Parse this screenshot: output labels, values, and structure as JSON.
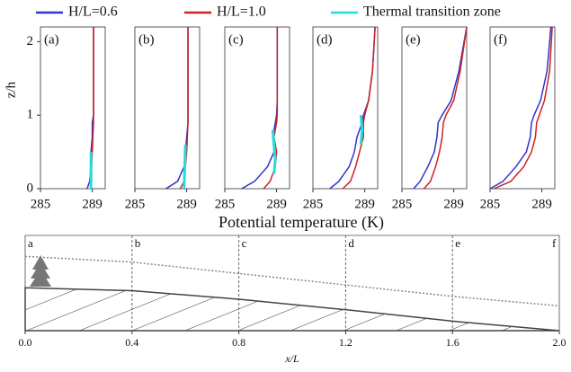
{
  "chart_data": [
    {
      "type": "line",
      "panel_label": "(a)",
      "xlabel": "Potential temperature (K)",
      "ylabel": "z/h",
      "xlim": [
        285,
        290
      ],
      "xticks": [
        285,
        289
      ],
      "ylim": [
        0,
        2.2
      ],
      "yticks": [
        0,
        1,
        2
      ],
      "series": [
        {
          "name": "H/L=0.6",
          "color": "#3333cc",
          "x": [
            288.6,
            288.8,
            288.9,
            288.9,
            289.0,
            289.0,
            289.1,
            289.1,
            289.1,
            289.1
          ],
          "values": [
            0,
            0.1,
            0.3,
            0.5,
            0.7,
            0.9,
            1.0,
            1.2,
            1.6,
            2.2
          ]
        },
        {
          "name": "H/L=1.0",
          "color": "#cc2222",
          "x": [
            288.9,
            288.95,
            288.95,
            289.0,
            289.05,
            289.1,
            289.1,
            289.1,
            289.1,
            289.1
          ],
          "values": [
            0,
            0.1,
            0.3,
            0.5,
            0.7,
            0.9,
            1.0,
            1.2,
            1.6,
            2.2
          ]
        },
        {
          "name": "Thermal transition zone",
          "color": "#22dddd",
          "x": [
            288.9,
            288.9
          ],
          "values": [
            0,
            0.5
          ]
        }
      ]
    },
    {
      "type": "line",
      "panel_label": "(b)",
      "xlim": [
        285,
        290
      ],
      "xticks": [
        285,
        289
      ],
      "ylim": [
        0,
        2.2
      ],
      "series": [
        {
          "color": "#3333cc",
          "x": [
            287.4,
            288.3,
            288.8,
            288.9,
            289.0,
            289.1,
            289.1,
            289.1,
            289.1,
            289.1
          ],
          "values": [
            0,
            0.1,
            0.3,
            0.5,
            0.7,
            0.9,
            1.0,
            1.2,
            1.6,
            2.2
          ]
        },
        {
          "color": "#cc2222",
          "x": [
            288.5,
            288.8,
            288.9,
            289.0,
            289.05,
            289.1,
            289.1,
            289.1,
            289.1,
            289.1
          ],
          "values": [
            0,
            0.1,
            0.3,
            0.5,
            0.7,
            0.9,
            1.0,
            1.2,
            1.6,
            2.2
          ]
        },
        {
          "color": "#22dddd",
          "x": [
            288.8,
            288.9
          ],
          "values": [
            0,
            0.6
          ]
        }
      ]
    },
    {
      "type": "line",
      "panel_label": "(c)",
      "xlim": [
        285,
        290
      ],
      "xticks": [
        285,
        289
      ],
      "ylim": [
        0,
        2.2
      ],
      "series": [
        {
          "color": "#3333cc",
          "x": [
            286.3,
            287.3,
            288.3,
            288.8,
            288.7,
            288.9,
            289.0,
            289.05,
            289.05,
            289.05
          ],
          "values": [
            0,
            0.1,
            0.3,
            0.5,
            0.7,
            0.9,
            1.0,
            1.2,
            1.6,
            2.2
          ]
        },
        {
          "color": "#cc2222",
          "x": [
            288.0,
            288.5,
            288.9,
            289.0,
            288.8,
            289.0,
            289.05,
            289.05,
            289.05,
            289.05
          ],
          "values": [
            0,
            0.1,
            0.3,
            0.5,
            0.7,
            0.9,
            1.0,
            1.2,
            1.6,
            2.2
          ]
        },
        {
          "color": "#22dddd",
          "x": [
            288.8,
            288.9,
            288.8,
            288.7
          ],
          "values": [
            0.2,
            0.4,
            0.6,
            0.8
          ]
        }
      ]
    },
    {
      "type": "line",
      "panel_label": "(d)",
      "xlim": [
        285,
        290
      ],
      "xticks": [
        285,
        289
      ],
      "ylim": [
        0,
        2.2
      ],
      "series": [
        {
          "color": "#3333cc",
          "x": [
            286.3,
            287.0,
            287.8,
            288.2,
            288.4,
            288.8,
            288.9,
            289.3,
            289.6,
            289.8
          ],
          "values": [
            0,
            0.1,
            0.3,
            0.5,
            0.7,
            0.9,
            1.0,
            1.2,
            1.6,
            2.2
          ]
        },
        {
          "color": "#cc2222",
          "x": [
            287.3,
            287.9,
            288.3,
            288.6,
            288.9,
            288.9,
            289.0,
            289.3,
            289.6,
            289.8
          ],
          "values": [
            0,
            0.1,
            0.3,
            0.5,
            0.7,
            0.9,
            1.0,
            1.2,
            1.6,
            2.2
          ]
        },
        {
          "color": "#22dddd",
          "x": [
            288.7,
            288.8,
            288.7
          ],
          "values": [
            0.6,
            0.8,
            1.0
          ]
        }
      ]
    },
    {
      "type": "line",
      "panel_label": "(e)",
      "xlim": [
        285,
        290
      ],
      "xticks": [
        285,
        289
      ],
      "ylim": [
        0,
        2.2
      ],
      "series": [
        {
          "color": "#3333cc",
          "x": [
            285.9,
            286.4,
            287.0,
            287.5,
            287.7,
            287.8,
            288.1,
            288.8,
            289.4,
            290.0
          ],
          "values": [
            0,
            0.1,
            0.3,
            0.5,
            0.7,
            0.9,
            1.0,
            1.2,
            1.6,
            2.2
          ]
        },
        {
          "color": "#cc2222",
          "x": [
            286.7,
            287.2,
            287.6,
            287.9,
            288.1,
            288.2,
            288.4,
            289.0,
            289.5,
            290.0
          ],
          "values": [
            0,
            0.1,
            0.3,
            0.5,
            0.7,
            0.9,
            1.0,
            1.2,
            1.6,
            2.2
          ]
        }
      ]
    },
    {
      "type": "line",
      "panel_label": "(f)",
      "xlim": [
        285,
        290
      ],
      "xticks": [
        285,
        289
      ],
      "ylim": [
        0,
        2.2
      ],
      "series": [
        {
          "color": "#3333cc",
          "x": [
            285.0,
            286.0,
            287.0,
            287.8,
            288.1,
            288.2,
            288.4,
            288.9,
            289.4,
            289.7
          ],
          "values": [
            0,
            0.1,
            0.3,
            0.5,
            0.7,
            0.9,
            1.0,
            1.2,
            1.6,
            2.2
          ]
        },
        {
          "color": "#cc2222",
          "x": [
            285.3,
            286.6,
            287.6,
            288.2,
            288.5,
            288.6,
            288.8,
            289.2,
            289.6,
            289.8
          ],
          "values": [
            0,
            0.1,
            0.3,
            0.5,
            0.7,
            0.9,
            1.0,
            1.2,
            1.6,
            2.2
          ]
        }
      ]
    },
    {
      "type": "schematic",
      "xlabel": "x/L",
      "xlim": [
        0,
        2
      ],
      "ylim": [
        0,
        1
      ],
      "xticks": [
        {
          "value": 0,
          "label": "0.0"
        },
        {
          "value": 0.4,
          "label": "0.4"
        },
        {
          "value": 0.8,
          "label": "0.8"
        },
        {
          "value": 1.2,
          "label": "1.2"
        },
        {
          "value": 1.6,
          "label": "1.6"
        },
        {
          "value": 2,
          "label": "2.0"
        }
      ],
      "x": [
        0,
        0.4,
        0.8,
        1.2,
        1.6,
        2.0
      ],
      "station_labels": [
        "a",
        "b",
        "c",
        "d",
        "e",
        "f"
      ],
      "series": [
        {
          "color": "#444444",
          "style": "hatched",
          "values": [
            0.45,
            0.42,
            0.33,
            0.22,
            0.1,
            0
          ]
        },
        {
          "color": "#888888",
          "style": "dotted",
          "values": [
            0.78,
            0.72,
            0.6,
            0.48,
            0.36,
            0.26
          ]
        }
      ]
    }
  ]
}
